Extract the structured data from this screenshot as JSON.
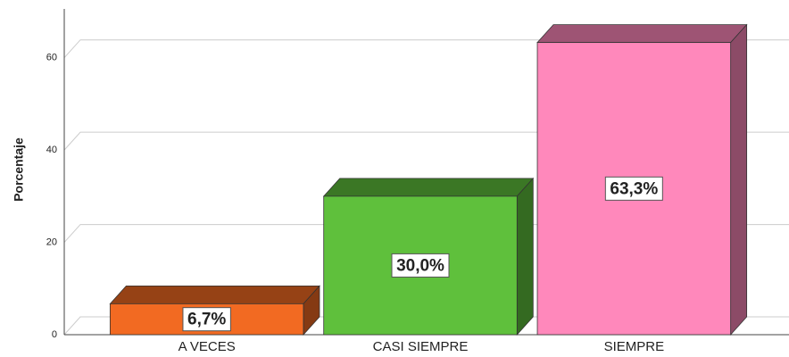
{
  "chart_data": {
    "type": "bar3d",
    "y_label": "Porcentaje",
    "categories": [
      "A VECES",
      "CASI SIEMPRE",
      "SIEMPRE"
    ],
    "values": [
      6.7,
      30.0,
      63.3
    ],
    "value_labels": [
      "6,7%",
      "30,0%",
      "63,3%"
    ],
    "colors": [
      "#f26a22",
      "#5fc03c",
      "#ff88bb"
    ],
    "ylim": [
      0,
      70
    ],
    "yticks": [
      0,
      20,
      40,
      60
    ],
    "grid": true
  }
}
